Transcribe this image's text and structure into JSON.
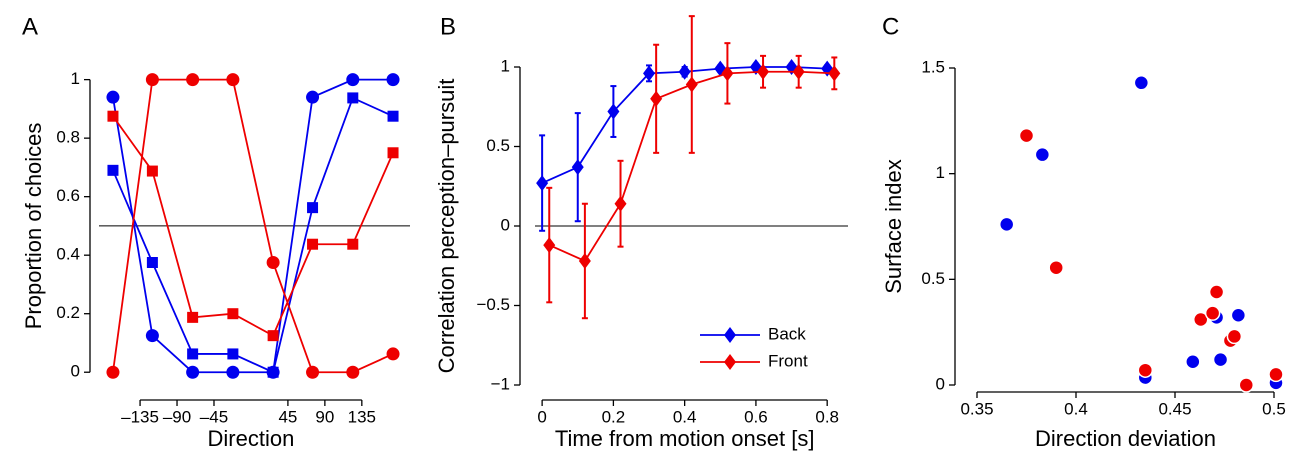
{
  "chart_data": [
    {
      "type": "line",
      "panel": "A",
      "x_label": "Direction",
      "y_label": "Proportion of choices",
      "x": [
        -168,
        -120,
        -71,
        -22,
        27,
        75,
        124,
        173
      ],
      "xlim": [
        -185,
        190
      ],
      "ylim": [
        -0.03,
        1.05
      ],
      "xticks": [
        {
          "value": -135,
          "label": "–135"
        },
        {
          "value": -90,
          "label": "–90"
        },
        {
          "value": -45,
          "label": "–45"
        },
        45,
        90,
        135
      ],
      "yticks": [
        0,
        0.2,
        0.4,
        0.6,
        0.8,
        1
      ],
      "reference_line": 0.5,
      "series": [
        {
          "color": "#0000ee",
          "marker": "circle",
          "values": [
            0.94,
            0.125,
            0,
            0,
            0,
            0.94,
            1,
            1
          ]
        },
        {
          "color": "#0000ee",
          "marker": "square",
          "values": [
            0.69,
            0.375,
            0.0625,
            0.0625,
            0,
            0.5625,
            0.9375,
            0.875
          ]
        },
        {
          "color": "#ee0000",
          "marker": "square",
          "values": [
            0.875,
            0.6875,
            0.1875,
            0.2,
            0.125,
            0.4375,
            0.4375,
            0.75
          ]
        },
        {
          "color": "#ee0000",
          "marker": "circle",
          "values": [
            0,
            1,
            1,
            1,
            0.375,
            0,
            0,
            0.0625
          ]
        }
      ]
    },
    {
      "type": "line",
      "panel": "B",
      "x_label": "Time from motion onset [s]",
      "y_label": "Correlation perception–pursuit",
      "xlim": [
        -0.02,
        0.85
      ],
      "ylim": [
        -1,
        1
      ],
      "xticks": [
        0,
        0.2,
        0.4,
        0.6,
        0.8
      ],
      "yticks": [
        {
          "value": -1,
          "label": "−1"
        },
        {
          "value": -0.5,
          "label": "−0.5"
        },
        0,
        0.5,
        1
      ],
      "reference_line": 0,
      "legend": "lower right",
      "series": [
        {
          "name": "Back",
          "color": "#0000ee",
          "marker": "diamond",
          "x": [
            0,
            0.1,
            0.2,
            0.3,
            0.4,
            0.5,
            0.6,
            0.7,
            0.8
          ],
          "values": [
            0.27,
            0.37,
            0.72,
            0.96,
            0.97,
            0.99,
            1.0,
            1.0,
            0.99
          ],
          "errors": [
            0.3,
            0.34,
            0.16,
            0.05,
            0.03,
            0.02,
            0.02,
            0.02,
            0.02
          ]
        },
        {
          "name": "Front",
          "color": "#ee0000",
          "marker": "diamond",
          "x": [
            0.02,
            0.12,
            0.22,
            0.32,
            0.42,
            0.52,
            0.62,
            0.72,
            0.82
          ],
          "values": [
            -0.12,
            -0.22,
            0.14,
            0.8,
            0.89,
            0.96,
            0.97,
            0.97,
            0.96
          ],
          "errors": [
            0.36,
            0.36,
            0.27,
            0.34,
            0.43,
            0.19,
            0.1,
            0.1,
            0.1
          ]
        }
      ]
    },
    {
      "type": "scatter",
      "panel": "C",
      "x_label": "Direction deviation",
      "y_label": "Surface index",
      "xlim": [
        0.35,
        0.5
      ],
      "ylim": [
        0,
        1.5
      ],
      "xticks": [
        0.35,
        0.4,
        0.45,
        0.5
      ],
      "yticks": [
        0,
        0.5,
        1,
        1.5
      ],
      "series": [
        {
          "color": "#0000ee",
          "x": [
            0.365,
            0.383,
            0.433,
            0.435,
            0.459,
            0.473,
            0.471,
            0.482,
            0.501
          ],
          "values": [
            0.76,
            1.09,
            1.43,
            0.035,
            0.11,
            0.12,
            0.32,
            0.33,
            0.01
          ]
        },
        {
          "color": "#ee0000",
          "x": [
            0.375,
            0.39,
            0.435,
            0.463,
            0.471,
            0.469,
            0.478,
            0.48,
            0.486,
            0.501
          ],
          "values": [
            1.18,
            0.555,
            0.07,
            0.31,
            0.44,
            0.34,
            0.21,
            0.23,
            0.0,
            0.05
          ]
        }
      ]
    }
  ]
}
